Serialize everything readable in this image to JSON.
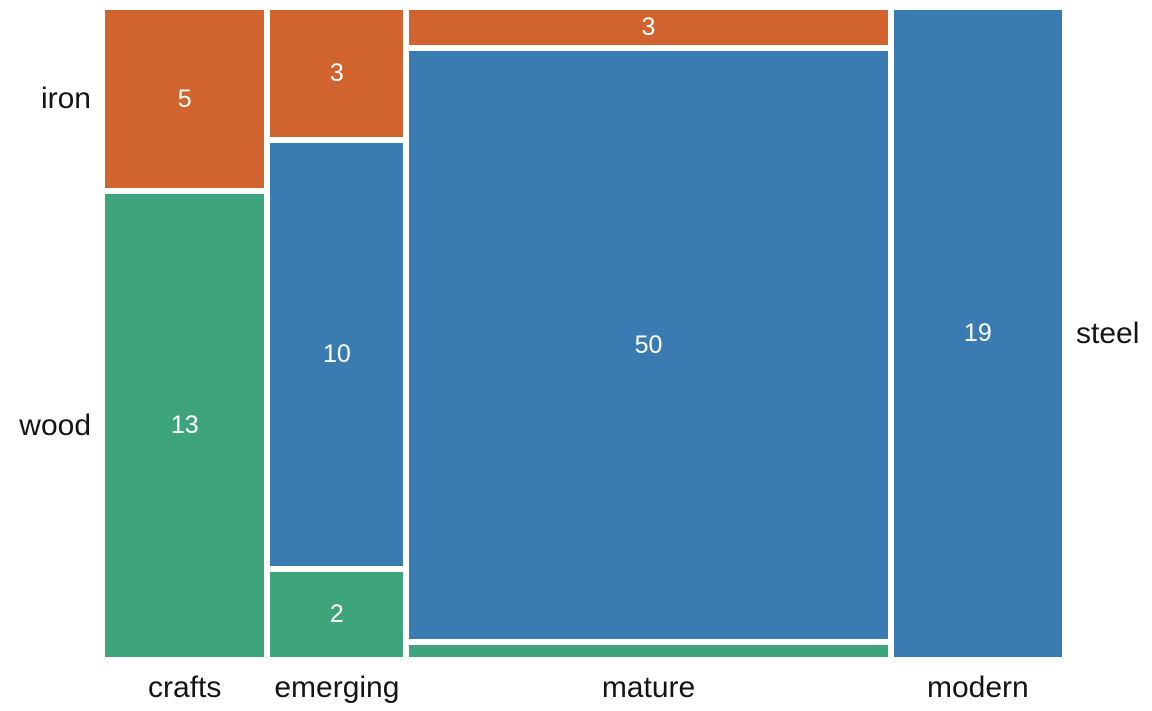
{
  "chart_data": {
    "type": "mosaic",
    "title": "",
    "xlabel": "",
    "ylabel": "",
    "x_categories": [
      "crafts",
      "emerging",
      "mature",
      "modern"
    ],
    "y_categories": [
      "iron",
      "steel",
      "wood"
    ],
    "colors": {
      "iron": "#D0632E",
      "steel": "#3A7BB1",
      "wood": "#3DA47B"
    },
    "value_label_color": "#ffffff",
    "axis_label_color": "#141414",
    "background_color": "#ffffff",
    "columns": [
      {
        "label": "crafts",
        "segments": [
          {
            "material": "iron",
            "value": 5,
            "label": "5"
          },
          {
            "material": "wood",
            "value": 13,
            "label": "13"
          }
        ]
      },
      {
        "label": "emerging",
        "segments": [
          {
            "material": "iron",
            "value": 3,
            "label": "3"
          },
          {
            "material": "steel",
            "value": 10,
            "label": "10"
          },
          {
            "material": "wood",
            "value": 2,
            "label": "2"
          }
        ]
      },
      {
        "label": "mature",
        "segments": [
          {
            "material": "iron",
            "value": 3,
            "label": "3"
          },
          {
            "material": "steel",
            "value": 50,
            "label": "50"
          },
          {
            "material": "wood",
            "value": 1,
            "label": ""
          }
        ]
      },
      {
        "label": "modern",
        "segments": [
          {
            "material": "steel",
            "value": 19,
            "label": "19"
          }
        ]
      }
    ],
    "row_labels": [
      {
        "text": "iron",
        "side": "left",
        "col": 0,
        "segment": 0
      },
      {
        "text": "wood",
        "side": "left",
        "col": 0,
        "segment": 1
      },
      {
        "text": "steel",
        "side": "right",
        "col": 3,
        "segment": 0
      }
    ]
  }
}
